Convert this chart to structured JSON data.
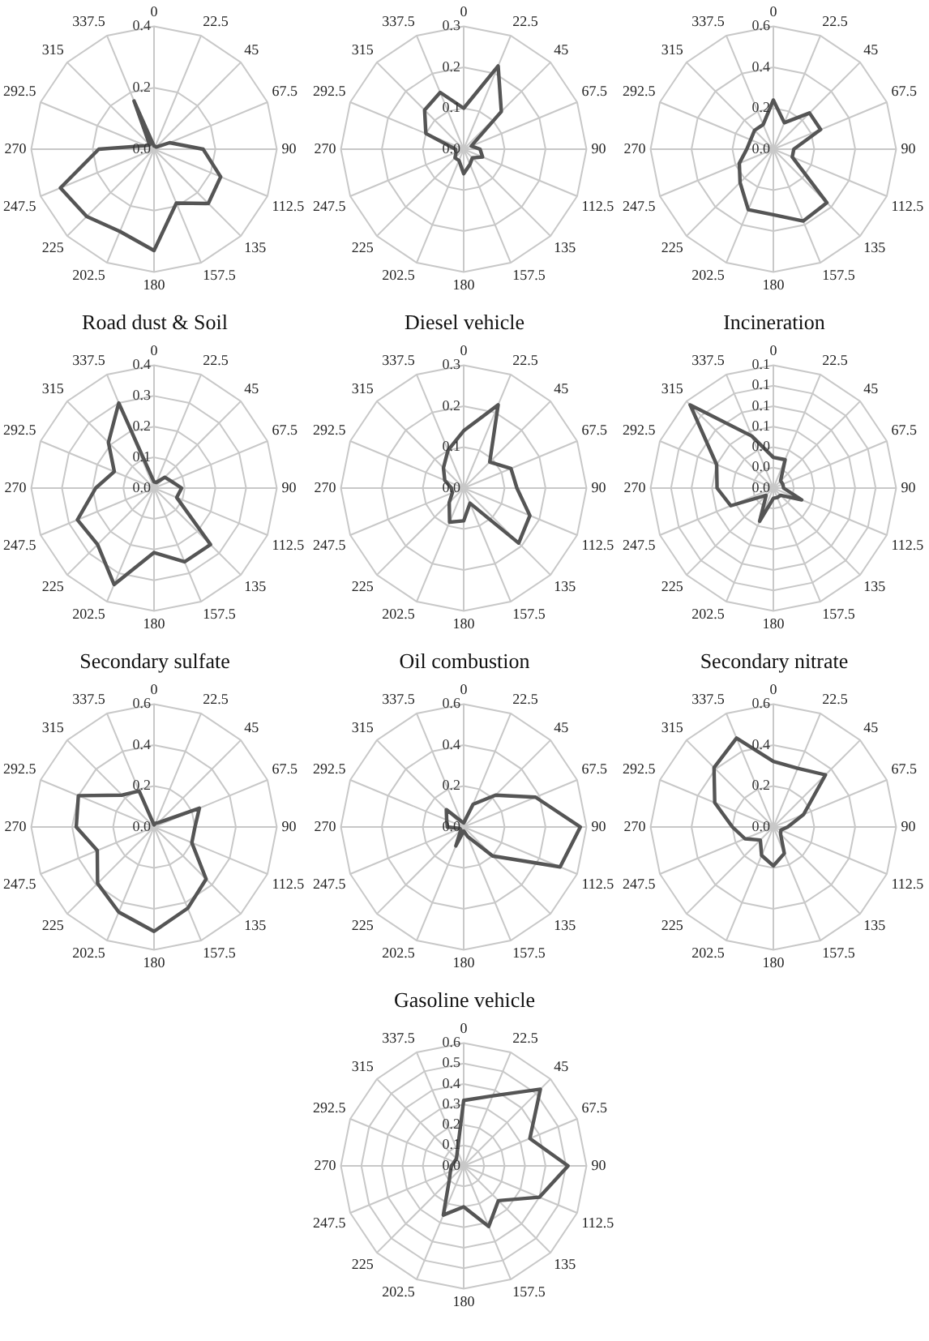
{
  "chart_data": [
    {
      "type": "radar",
      "categories": [
        "0",
        "22.5",
        "45",
        "67.5",
        "90",
        "112.5",
        "135",
        "157.5",
        "180",
        "202.5",
        "225",
        "247.5",
        "270",
        "292.5",
        "315",
        "337.5"
      ],
      "grid": true,
      "ylim": [
        0,
        0.4
      ],
      "yticks": [
        {
          "value": 0,
          "label": "0.0"
        },
        0.2,
        0.4
      ],
      "series": [
        {
          "color": "#555555",
          "values": [
            0.01,
            0.01,
            0.01,
            0.055,
            0.16,
            0.235,
            0.25,
            0.19,
            0.33,
            0.29,
            0.31,
            0.33,
            0.18,
            0.03,
            0.02,
            0.17
          ]
        }
      ]
    },
    {
      "type": "radar",
      "categories": [
        "0",
        "22.5",
        "45",
        "67.5",
        "90",
        "112.5",
        "135",
        "157.5",
        "180",
        "202.5",
        "225",
        "247.5",
        "270",
        "292.5",
        "315",
        "337.5"
      ],
      "grid": true,
      "ylim": [
        0,
        0.3
      ],
      "yticks": [
        {
          "value": 0,
          "label": "0.0"
        },
        0.1,
        0.2,
        0.3
      ],
      "series": [
        {
          "color": "#555555",
          "values": [
            0.1,
            0.22,
            0.13,
            0.02,
            0.04,
            0.05,
            0.03,
            0.04,
            0.06,
            0.03,
            0.03,
            0.02,
            0.02,
            0.1,
            0.135,
            0.15
          ]
        }
      ]
    },
    {
      "type": "radar",
      "categories": [
        "0",
        "22.5",
        "45",
        "67.5",
        "90",
        "112.5",
        "135",
        "157.5",
        "180",
        "202.5",
        "225",
        "247.5",
        "270",
        "292.5",
        "315",
        "337.5"
      ],
      "grid": true,
      "ylim": [
        0,
        0.6
      ],
      "yticks": [
        {
          "value": 0,
          "label": "0.0"
        },
        0.2,
        0.4,
        0.6
      ],
      "series": [
        {
          "color": "#555555",
          "values": [
            0.24,
            0.14,
            0.25,
            0.25,
            0.1,
            0.1,
            0.37,
            0.38,
            0.32,
            0.32,
            0.23,
            0.18,
            0.13,
            0.12,
            0.13,
            0.13
          ]
        }
      ]
    },
    {
      "type": "radar",
      "title": "Road dust & Soil",
      "categories": [
        "0",
        "22.5",
        "45",
        "67.5",
        "90",
        "112.5",
        "135",
        "157.5",
        "180",
        "202.5",
        "225",
        "247.5",
        "270",
        "292.5",
        "315",
        "337.5"
      ],
      "grid": true,
      "ylim": [
        0,
        0.4
      ],
      "yticks": [
        {
          "value": 0,
          "label": "0.0"
        },
        0.1,
        0.2,
        0.3,
        0.4
      ],
      "series": [
        {
          "color": "#555555",
          "values": [
            0.02,
            0.02,
            0.05,
            0.06,
            0.09,
            0.08,
            0.26,
            0.26,
            0.21,
            0.34,
            0.26,
            0.27,
            0.19,
            0.14,
            0.21,
            0.3
          ]
        }
      ]
    },
    {
      "type": "radar",
      "title": "Diesel vehicle",
      "categories": [
        "0",
        "22.5",
        "45",
        "67.5",
        "90",
        "112.5",
        "135",
        "157.5",
        "180",
        "202.5",
        "225",
        "247.5",
        "270",
        "292.5",
        "315",
        "337.5"
      ],
      "grid": true,
      "ylim": [
        0,
        0.3
      ],
      "yticks": [
        {
          "value": 0,
          "label": "0.0"
        },
        0.1,
        0.2,
        0.3
      ],
      "series": [
        {
          "color": "#555555",
          "values": [
            0.14,
            0.22,
            0.09,
            0.125,
            0.13,
            0.175,
            0.19,
            0.04,
            0.08,
            0.09,
            0.05,
            0.03,
            0.03,
            0.05,
            0.07,
            0.1
          ]
        }
      ]
    },
    {
      "type": "radar",
      "title": "Incineration",
      "categories": [
        "0",
        "22.5",
        "45",
        "67.5",
        "90",
        "112.5",
        "135",
        "157.5",
        "180",
        "202.5",
        "225",
        "247.5",
        "270",
        "292.5",
        "315",
        "337.5"
      ],
      "grid": true,
      "ylim": [
        0,
        0.12
      ],
      "yticks": [
        {
          "value": 0,
          "label": "0.0"
        },
        {
          "value": 0.02,
          "label": "0.0"
        },
        {
          "value": 0.04,
          "label": "0.0"
        },
        {
          "value": 0.06,
          "label": "0.1"
        },
        {
          "value": 0.08,
          "label": "0.1"
        },
        {
          "value": 0.1,
          "label": "0.1"
        },
        {
          "value": 0.12,
          "label": "0.1"
        }
      ],
      "series": [
        {
          "color": "#555555",
          "values": [
            0.03,
            0.03,
            0.01,
            0.01,
            0.01,
            0.03,
            0.01,
            0.01,
            0.01,
            0.035,
            0.01,
            0.045,
            0.055,
            0.06,
            0.115,
            0.055
          ]
        }
      ]
    },
    {
      "type": "radar",
      "title": "Secondary sulfate",
      "categories": [
        "0",
        "22.5",
        "45",
        "67.5",
        "90",
        "112.5",
        "135",
        "157.5",
        "180",
        "202.5",
        "225",
        "247.5",
        "270",
        "292.5",
        "315",
        "337.5"
      ],
      "grid": true,
      "ylim": [
        0,
        0.6
      ],
      "yticks": [
        {
          "value": 0,
          "label": "0.0"
        },
        0.2,
        0.4,
        0.6
      ],
      "series": [
        {
          "color": "#555555",
          "values": [
            0.01,
            0.02,
            0.03,
            0.24,
            0.2,
            0.2,
            0.36,
            0.43,
            0.51,
            0.45,
            0.39,
            0.3,
            0.38,
            0.4,
            0.22,
            0.19
          ]
        }
      ]
    },
    {
      "type": "radar",
      "title": "Oil combustion",
      "categories": [
        "0",
        "22.5",
        "45",
        "67.5",
        "90",
        "112.5",
        "135",
        "157.5",
        "180",
        "202.5",
        "225",
        "247.5",
        "270",
        "292.5",
        "315",
        "337.5"
      ],
      "grid": true,
      "ylim": [
        0,
        0.6
      ],
      "yticks": [
        {
          "value": 0,
          "label": "0.0"
        },
        0.2,
        0.4,
        0.6
      ],
      "series": [
        {
          "color": "#555555",
          "values": [
            0.02,
            0.12,
            0.22,
            0.38,
            0.57,
            0.51,
            0.2,
            0.05,
            0.02,
            0.1,
            0.02,
            0.02,
            0.08,
            0.09,
            0.12,
            0.03
          ]
        }
      ]
    },
    {
      "type": "radar",
      "title": "Secondary nitrate",
      "categories": [
        "0",
        "22.5",
        "45",
        "67.5",
        "90",
        "112.5",
        "135",
        "157.5",
        "180",
        "202.5",
        "225",
        "247.5",
        "270",
        "292.5",
        "315",
        "337.5"
      ],
      "grid": true,
      "ylim": [
        0,
        0.6
      ],
      "yticks": [
        {
          "value": 0,
          "label": "0.0"
        },
        0.2,
        0.4,
        0.6
      ],
      "series": [
        {
          "color": "#555555",
          "values": [
            0.32,
            0.31,
            0.36,
            0.16,
            0.07,
            0.04,
            0.05,
            0.14,
            0.19,
            0.15,
            0.09,
            0.15,
            0.2,
            0.31,
            0.41,
            0.47
          ]
        }
      ]
    },
    {
      "type": "radar",
      "title": "Gasoline vehicle",
      "categories": [
        "0",
        "22.5",
        "45",
        "67.5",
        "90",
        "112.5",
        "135",
        "157.5",
        "180",
        "202.5",
        "225",
        "247.5",
        "270",
        "292.5",
        "315",
        "337.5"
      ],
      "grid": true,
      "ylim": [
        0,
        0.6
      ],
      "yticks": [
        {
          "value": 0,
          "label": "0.0"
        },
        0.1,
        0.2,
        0.3,
        0.4,
        0.5,
        0.6
      ],
      "series": [
        {
          "color": "#555555",
          "values": [
            0.32,
            0.37,
            0.53,
            0.35,
            0.51,
            0.4,
            0.24,
            0.32,
            0.2,
            0.26,
            0.1,
            0.07,
            0.06,
            0.05,
            0.05,
            0.08
          ]
        }
      ]
    }
  ]
}
